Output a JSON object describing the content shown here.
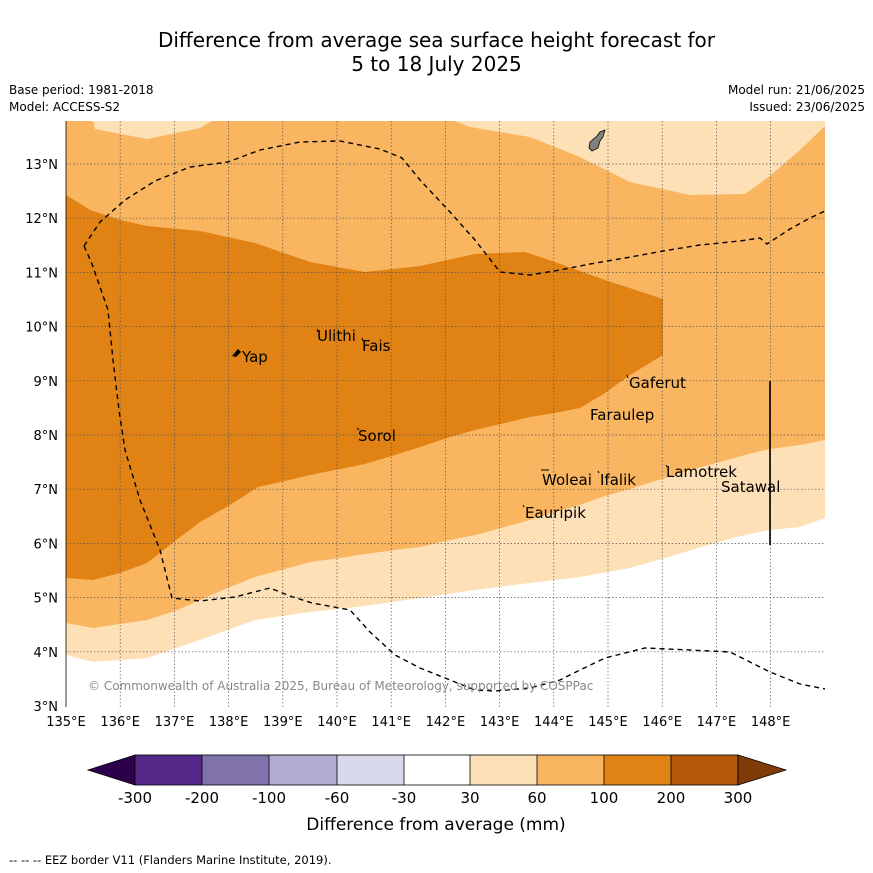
{
  "header": {
    "title_line1": "Difference from average sea surface height forecast for",
    "title_line2": "5 to 18 July 2025",
    "base_period": "Base period: 1981-2018",
    "model": "Model: ACCESS-S2",
    "model_run": "Model run: 21/06/2025",
    "issued": "Issued: 23/06/2025"
  },
  "map": {
    "lon_labels": [
      "135°E",
      "136°E",
      "137°E",
      "138°E",
      "139°E",
      "140°E",
      "141°E",
      "142°E",
      "143°E",
      "144°E",
      "145°E",
      "146°E",
      "147°E",
      "148°E"
    ],
    "lat_labels": [
      "13°N",
      "12°N",
      "11°N",
      "10°N",
      "9°N",
      "8°N",
      "7°N",
      "6°N",
      "5°N",
      "4°N",
      "3°N"
    ],
    "places": [
      "Yap",
      "Ulithi",
      "Fais",
      "Gaferut",
      "Faraulep",
      "Sorol",
      "Woleai",
      "Ifalik",
      "Lamotrek",
      "Satawal",
      "Eauripik"
    ],
    "copyright": "© Commonwealth of Australia 2025, Bureau of Meteorology, supported by COSPPac",
    "colors": {
      "band_30_60": "#fee0b6",
      "band_60_100": "#f9b55f",
      "band_100_200": "#e08214",
      "band_200_300": "#b35806"
    }
  },
  "colorbar": {
    "ticks": [
      "-300",
      "-200",
      "-100",
      "-60",
      "-30",
      "30",
      "60",
      "100",
      "200",
      "300"
    ],
    "label": "Difference from average (mm)",
    "colors": [
      "#2d004b",
      "#542788",
      "#8073ac",
      "#b2abd2",
      "#d8daeb",
      "#ffffff",
      "#fee0b6",
      "#f9b55f",
      "#e08214",
      "#b35806",
      "#7f3b08"
    ]
  },
  "footer": {
    "legend": "--  --  -- EEZ border V11 (Flanders Marine Institute, 2019)."
  }
}
